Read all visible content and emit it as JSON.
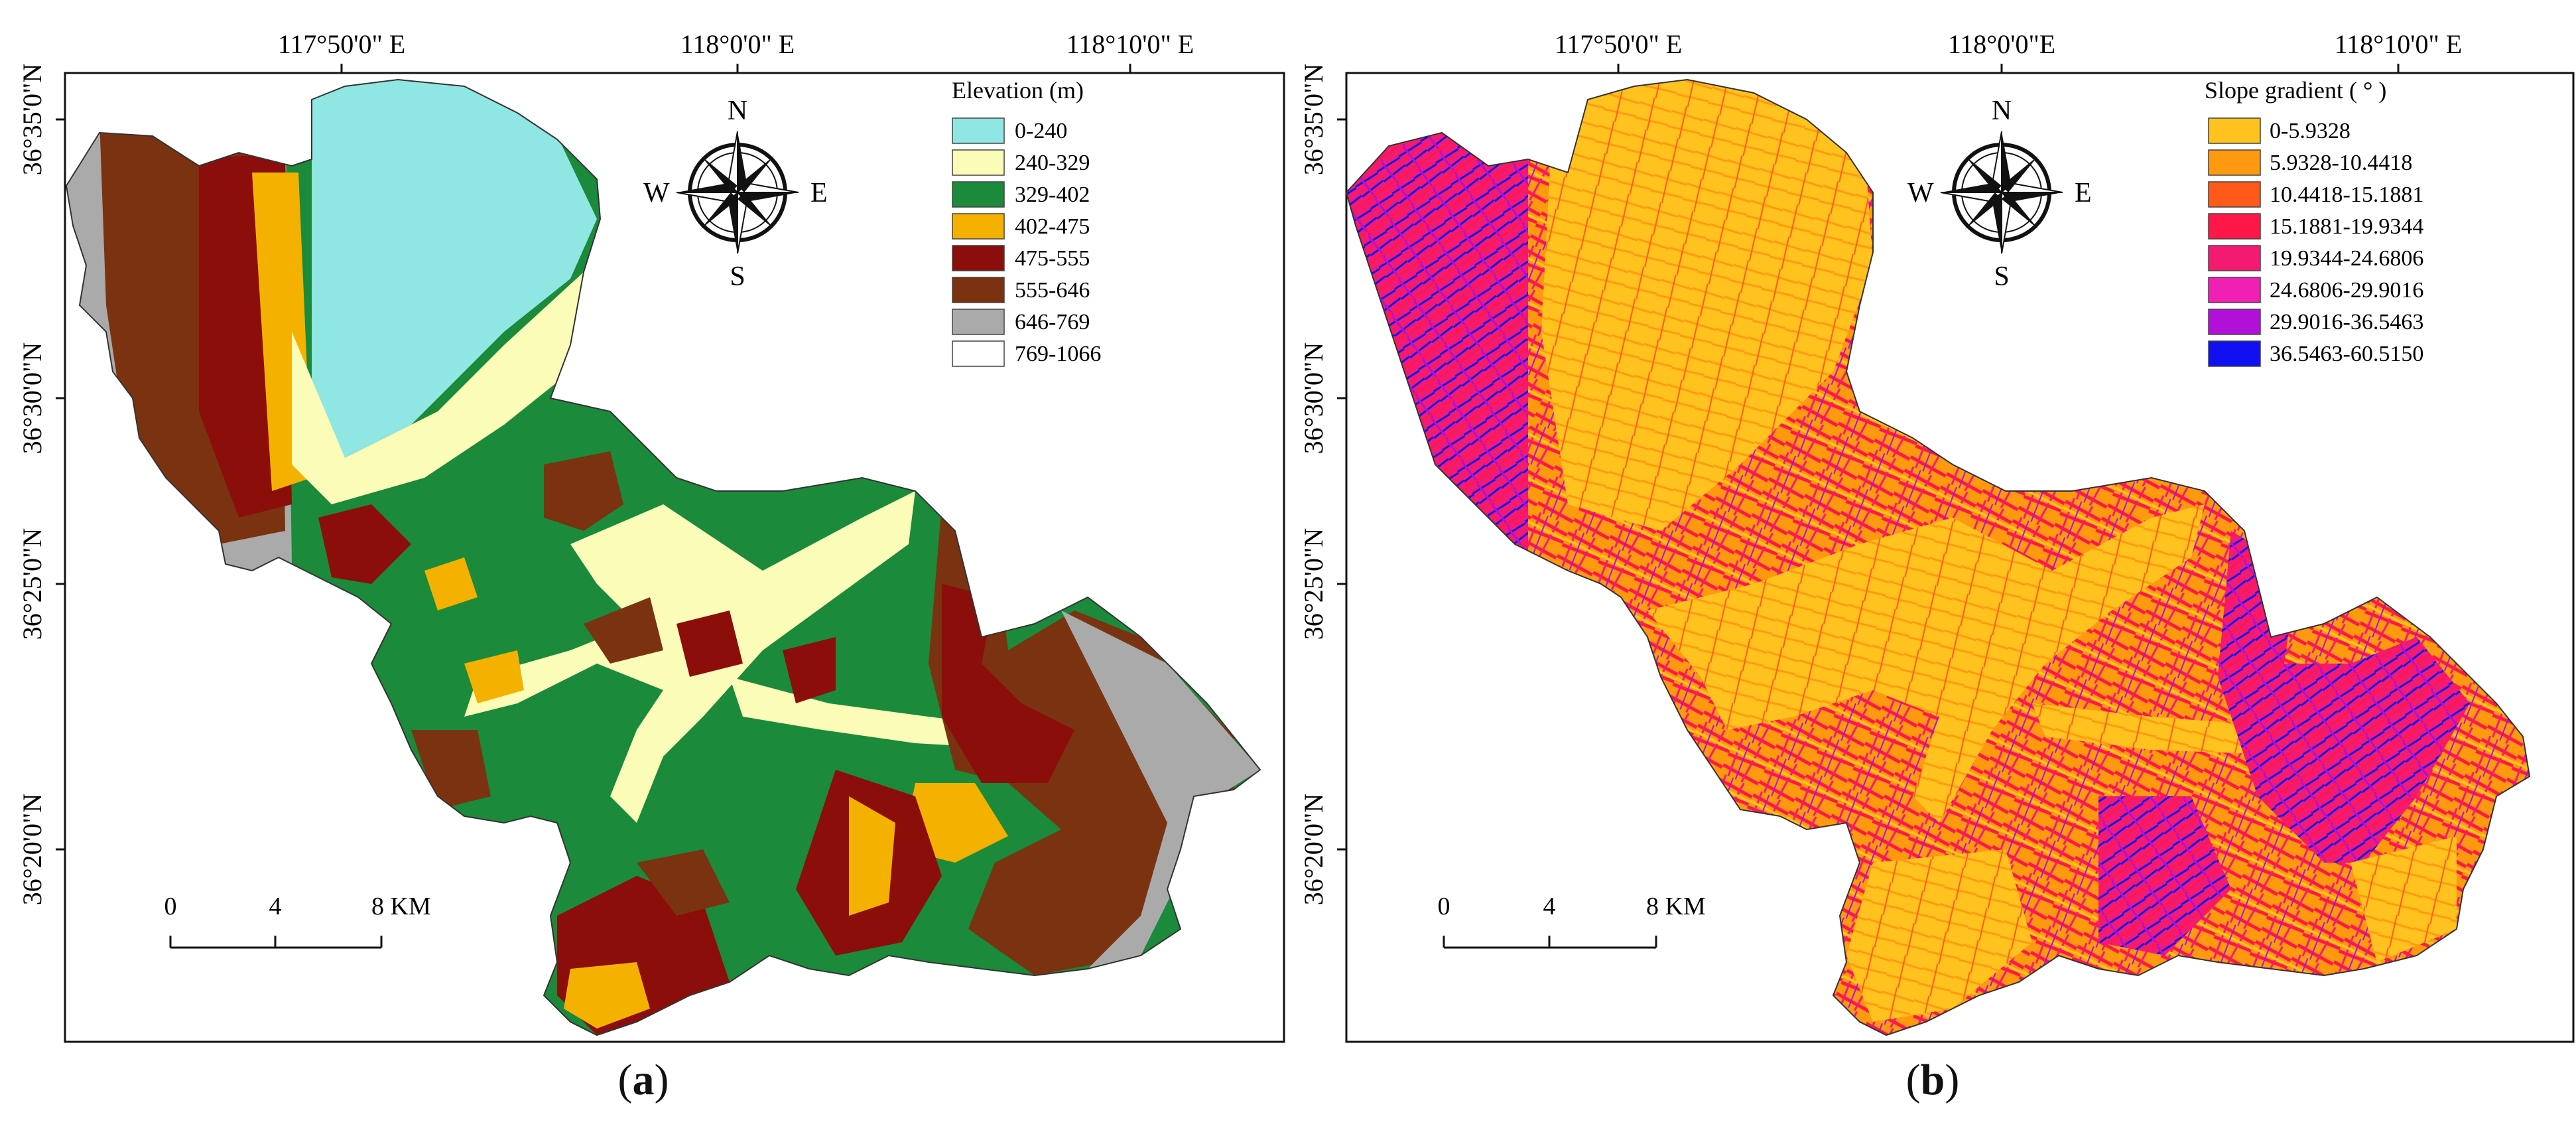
{
  "panel_a": {
    "caption_letter": "a",
    "top_ticks": [
      "117°50'0\" E",
      "118°0'0\" E",
      "118°10'0\" E"
    ],
    "left_ticks": [
      "36°35'0\"N",
      "36°30'0\"N",
      "36°25'0\"N",
      "36°20'0\"N"
    ],
    "legend_title": "Elevation (m)",
    "legend": [
      {
        "label": "0-240",
        "color": "#8fe6e2"
      },
      {
        "label": "240-329",
        "color": "#fafcb8"
      },
      {
        "label": "329-402",
        "color": "#1b8a3a"
      },
      {
        "label": "402-475",
        "color": "#f5b100"
      },
      {
        "label": "475-555",
        "color": "#8b0e0a"
      },
      {
        "label": "555-646",
        "color": "#7a3210"
      },
      {
        "label": "646-769",
        "color": "#aaaaaa"
      },
      {
        "label": "769-1066",
        "color": "#ffffff"
      }
    ],
    "compass": {
      "n": "N",
      "s": "S",
      "e": "E",
      "w": "W"
    },
    "scale": {
      "labels": [
        "0",
        "4",
        "8 KM"
      ]
    }
  },
  "panel_b": {
    "caption_letter": "b",
    "top_ticks": [
      "117°50'0\" E",
      "118°0'0\"E",
      "118°10'0\" E"
    ],
    "left_ticks": [
      "36°35'0\"N",
      "36°30'0\"N",
      "36°25'0\"N",
      "36°20'0\"N"
    ],
    "legend_title": "Slope gradient ( ° )",
    "legend": [
      {
        "label": "0-5.9328",
        "color": "#ffc21e"
      },
      {
        "label": "5.9328-10.4418",
        "color": "#ff9a10"
      },
      {
        "label": "10.4418-15.1881",
        "color": "#ff5a1a"
      },
      {
        "label": "15.1881-19.9344",
        "color": "#ff1748"
      },
      {
        "label": "19.9344-24.6806",
        "color": "#f41a72"
      },
      {
        "label": "24.6806-29.9016",
        "color": "#f020b4"
      },
      {
        "label": "29.9016-36.5463",
        "color": "#b010d8"
      },
      {
        "label": "36.5463-60.5150",
        "color": "#1010f0"
      }
    ],
    "compass": {
      "n": "N",
      "s": "S",
      "e": "E",
      "w": "W"
    },
    "scale": {
      "labels": [
        "0",
        "4",
        "8 KM"
      ]
    }
  }
}
